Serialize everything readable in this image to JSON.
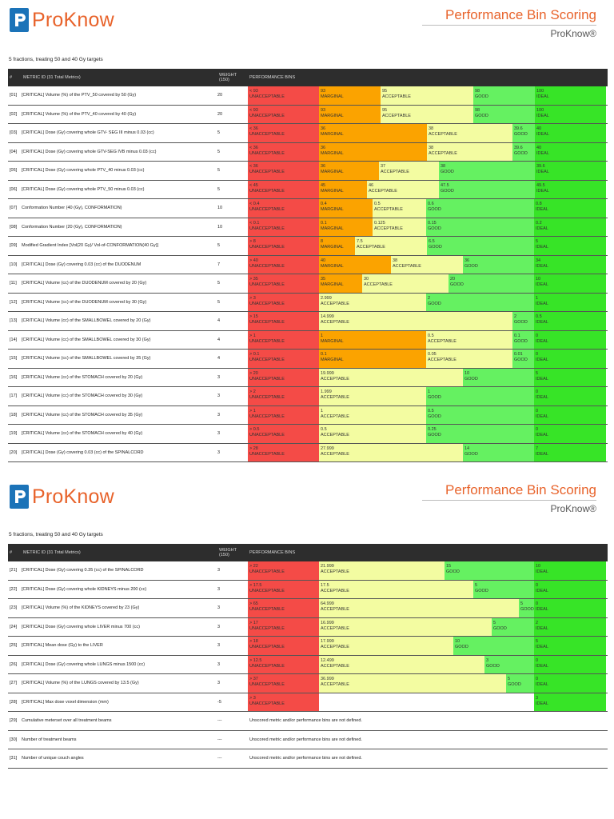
{
  "brand": {
    "name": "ProKnow"
  },
  "header": {
    "title": "Performance Bin Scoring",
    "subtitle": "ProKnow®"
  },
  "subtitle": "5 fractions, treating 50 and 40 Gy targets",
  "table_headers": {
    "num": "#",
    "metric": "METRIC ID  (31 Total Metrics)",
    "weight": "WEIGHT (150)",
    "bins": "PERFORMANCE BINS"
  },
  "colors": {
    "unacceptable": "#f44b47",
    "marginal": "#fba300",
    "acceptable": "#f3fca1",
    "good": "#65f161",
    "ideal": "#37e427",
    "logo": "#1b73b8",
    "accent": "#e8632b"
  },
  "undefined_text": "Unscored metric and/or performance bins are not defined.",
  "page1_rows": [
    {
      "num": "[01]",
      "name": "[CRITICAL] Volume (%) of the PTV_50 covered by 50 (Gy)",
      "weight": "20",
      "bins": [
        {
          "v": "< 93",
          "l": "UNACCEPTABLE",
          "c": "unacceptable",
          "w": 89
        },
        {
          "v": "93",
          "l": "MARGINAL",
          "c": "marginal",
          "w": 77
        },
        {
          "v": "95",
          "l": "ACCEPTABLE",
          "c": "acceptable",
          "w": 116
        },
        {
          "v": "98",
          "l": "GOOD",
          "c": "good",
          "w": 77
        },
        {
          "v": "100",
          "l": "IDEAL",
          "c": "ideal",
          "w": 89
        }
      ]
    },
    {
      "num": "[02]",
      "name": "[CRITICAL] Volume (%) of the PTV_40 covered by 40 (Gy)",
      "weight": "20",
      "bins": [
        {
          "v": "< 93",
          "l": "UNACCEPTABLE",
          "c": "unacceptable",
          "w": 89
        },
        {
          "v": "93",
          "l": "MARGINAL",
          "c": "marginal",
          "w": 77
        },
        {
          "v": "95",
          "l": "ACCEPTABLE",
          "c": "acceptable",
          "w": 116
        },
        {
          "v": "98",
          "l": "GOOD",
          "c": "good",
          "w": 77
        },
        {
          "v": "100",
          "l": "IDEAL",
          "c": "ideal",
          "w": 89
        }
      ]
    },
    {
      "num": "[03]",
      "name": "[CRITICAL] Dose (Gy) covering whole GTV- SEG III minus 0.03 (cc)",
      "weight": "5",
      "bins": [
        {
          "v": "< 36",
          "l": "UNACCEPTABLE",
          "c": "unacceptable",
          "w": 89
        },
        {
          "v": "36",
          "l": "MARGINAL",
          "c": "marginal",
          "w": 135
        },
        {
          "v": "38",
          "l": "ACCEPTABLE",
          "c": "acceptable",
          "w": 107
        },
        {
          "v": "39.6",
          "l": "GOOD",
          "c": "good",
          "w": 28
        },
        {
          "v": "40",
          "l": "IDEAL",
          "c": "ideal",
          "w": 89
        }
      ]
    },
    {
      "num": "[04]",
      "name": "[CRITICAL] Dose (Gy) covering whole GTV-SEG IVB minus 0.03 (cc)",
      "weight": "5",
      "bins": [
        {
          "v": "< 36",
          "l": "UNACCEPTABLE",
          "c": "unacceptable",
          "w": 89
        },
        {
          "v": "36",
          "l": "MARGINAL",
          "c": "marginal",
          "w": 135
        },
        {
          "v": "38",
          "l": "ACCEPTABLE",
          "c": "acceptable",
          "w": 107
        },
        {
          "v": "39.6",
          "l": "GOOD",
          "c": "good",
          "w": 28
        },
        {
          "v": "40",
          "l": "IDEAL",
          "c": "ideal",
          "w": 89
        }
      ]
    },
    {
      "num": "[05]",
      "name": "[CRITICAL] Dose (Gy) covering whole PTV_40 minus 0.03 (cc)",
      "weight": "5",
      "bins": [
        {
          "v": "< 36",
          "l": "UNACCEPTABLE",
          "c": "unacceptable",
          "w": 89
        },
        {
          "v": "36",
          "l": "MARGINAL",
          "c": "marginal",
          "w": 75
        },
        {
          "v": "37",
          "l": "ACCEPTABLE",
          "c": "acceptable",
          "w": 75
        },
        {
          "v": "38",
          "l": "GOOD",
          "c": "good",
          "w": 120
        },
        {
          "v": "39.6",
          "l": "IDEAL",
          "c": "ideal",
          "w": 89
        }
      ]
    },
    {
      "num": "[06]",
      "name": "[CRITICAL] Dose (Gy) covering whole PTV_50 minus 0.03 (cc)",
      "weight": "5",
      "bins": [
        {
          "v": "< 45",
          "l": "UNACCEPTABLE",
          "c": "unacceptable",
          "w": 89
        },
        {
          "v": "45",
          "l": "MARGINAL",
          "c": "marginal",
          "w": 60
        },
        {
          "v": "46",
          "l": "ACCEPTABLE",
          "c": "acceptable",
          "w": 90
        },
        {
          "v": "47.5",
          "l": "GOOD",
          "c": "good",
          "w": 120
        },
        {
          "v": "49.5",
          "l": "IDEAL",
          "c": "ideal",
          "w": 89
        }
      ]
    },
    {
      "num": "[07]",
      "name": "Conformation Number (40 (Gy), CONFORMATION)",
      "weight": "10",
      "bins": [
        {
          "v": "< 0.4",
          "l": "UNACCEPTABLE",
          "c": "unacceptable",
          "w": 89
        },
        {
          "v": "0.4",
          "l": "MARGINAL",
          "c": "marginal",
          "w": 67
        },
        {
          "v": "0.5",
          "l": "ACCEPTABLE",
          "c": "acceptable",
          "w": 67
        },
        {
          "v": "0.6",
          "l": "GOOD",
          "c": "good",
          "w": 135
        },
        {
          "v": "0.8",
          "l": "IDEAL",
          "c": "ideal",
          "w": 90
        }
      ]
    },
    {
      "num": "[08]",
      "name": "Conformation Number (20 (Gy), CONFORMATION)",
      "weight": "10",
      "bins": [
        {
          "v": "< 0.1",
          "l": "UNACCEPTABLE",
          "c": "unacceptable",
          "w": 89
        },
        {
          "v": "0.1",
          "l": "MARGINAL",
          "c": "marginal",
          "w": 67
        },
        {
          "v": "0.125",
          "l": "ACCEPTABLE",
          "c": "acceptable",
          "w": 67
        },
        {
          "v": "0.15",
          "l": "GOOD",
          "c": "good",
          "w": 135
        },
        {
          "v": "0.2",
          "l": "IDEAL",
          "c": "ideal",
          "w": 90
        }
      ]
    },
    {
      "num": "[09]",
      "name": "Modified Gradient Index [Vol(20 Gy)/ Vol-of-CONFORMATION(40 Gy)]",
      "weight": "5",
      "bins": [
        {
          "v": "> 8",
          "l": "UNACCEPTABLE",
          "c": "unacceptable",
          "w": 89
        },
        {
          "v": "8",
          "l": "MARGINAL",
          "c": "marginal",
          "w": 45
        },
        {
          "v": "7.5",
          "l": "ACCEPTABLE",
          "c": "acceptable",
          "w": 90
        },
        {
          "v": "6.5",
          "l": "GOOD",
          "c": "good",
          "w": 134
        },
        {
          "v": "5",
          "l": "IDEAL",
          "c": "ideal",
          "w": 90
        }
      ]
    },
    {
      "num": "[10]",
      "name": "[CRITICAL] Dose (Gy) covering 0.03 (cc) of the DUODENUM",
      "weight": "7",
      "bins": [
        {
          "v": "> 40",
          "l": "UNACCEPTABLE",
          "c": "unacceptable",
          "w": 89
        },
        {
          "v": "40",
          "l": "MARGINAL",
          "c": "marginal",
          "w": 90
        },
        {
          "v": "38",
          "l": "ACCEPTABLE",
          "c": "acceptable",
          "w": 90
        },
        {
          "v": "36",
          "l": "GOOD",
          "c": "good",
          "w": 89
        },
        {
          "v": "34",
          "l": "IDEAL",
          "c": "ideal",
          "w": 90
        }
      ]
    },
    {
      "num": "[11]",
      "name": "[CRITICAL] Volume (cc) of the DUODENUM covered by 20 (Gy)",
      "weight": "5",
      "bins": [
        {
          "v": "> 35",
          "l": "UNACCEPTABLE",
          "c": "unacceptable",
          "w": 89
        },
        {
          "v": "35",
          "l": "MARGINAL",
          "c": "marginal",
          "w": 54
        },
        {
          "v": "30",
          "l": "ACCEPTABLE",
          "c": "acceptable",
          "w": 108
        },
        {
          "v": "20",
          "l": "GOOD",
          "c": "good",
          "w": 107
        },
        {
          "v": "10",
          "l": "IDEAL",
          "c": "ideal",
          "w": 90
        }
      ]
    },
    {
      "num": "[12]",
      "name": "[CRITICAL] Volume (cc) of the DUODENUM covered by 30 (Gy)",
      "weight": "5",
      "bins": [
        {
          "v": "> 3",
          "l": "UNACCEPTABLE",
          "c": "unacceptable",
          "w": 89
        },
        {
          "v": "2.999",
          "l": "ACCEPTABLE",
          "c": "acceptable",
          "w": 134
        },
        {
          "v": "2",
          "l": "GOOD",
          "c": "good",
          "w": 135
        },
        {
          "v": "1",
          "l": "IDEAL",
          "c": "ideal",
          "w": 90
        }
      ]
    },
    {
      "num": "[13]",
      "name": "[CRITICAL] Volume (cc) of the SMALLBOWEL covered by 20 (Gy)",
      "weight": "4",
      "bins": [
        {
          "v": "> 15",
          "l": "UNACCEPTABLE",
          "c": "unacceptable",
          "w": 89
        },
        {
          "v": "14.999",
          "l": "ACCEPTABLE",
          "c": "acceptable",
          "w": 242
        },
        {
          "v": "2",
          "l": "GOOD",
          "c": "good",
          "w": 27
        },
        {
          "v": "0.5",
          "l": "IDEAL",
          "c": "ideal",
          "w": 90
        }
      ]
    },
    {
      "num": "[14]",
      "name": "[CRITICAL] Volume (cc) of the SMALLBOWEL covered by 30 (Gy)",
      "weight": "4",
      "bins": [
        {
          "v": "> 1",
          "l": "UNACCEPTABLE",
          "c": "unacceptable",
          "w": 89
        },
        {
          "v": "1",
          "l": "MARGINAL",
          "c": "marginal",
          "w": 134
        },
        {
          "v": "0.5",
          "l": "ACCEPTABLE",
          "c": "acceptable",
          "w": 108
        },
        {
          "v": "0.1",
          "l": "GOOD",
          "c": "good",
          "w": 27
        },
        {
          "v": "0",
          "l": "IDEAL",
          "c": "ideal",
          "w": 90
        }
      ]
    },
    {
      "num": "[15]",
      "name": "[CRITICAL] Volume (cc) of the SMALLBOWEL covered by 35 (Gy)",
      "weight": "4",
      "bins": [
        {
          "v": "> 0.1",
          "l": "UNACCEPTABLE",
          "c": "unacceptable",
          "w": 89
        },
        {
          "v": "0.1",
          "l": "MARGINAL",
          "c": "marginal",
          "w": 134
        },
        {
          "v": "0.05",
          "l": "ACCEPTABLE",
          "c": "acceptable",
          "w": 108
        },
        {
          "v": "0.01",
          "l": "GOOD",
          "c": "good",
          "w": 27
        },
        {
          "v": "0",
          "l": "IDEAL",
          "c": "ideal",
          "w": 90
        }
      ]
    },
    {
      "num": "[16]",
      "name": "[CRITICAL] Volume (cc) of the STOMACH covered by 20 (Gy)",
      "weight": "3",
      "bins": [
        {
          "v": "> 20",
          "l": "UNACCEPTABLE",
          "c": "unacceptable",
          "w": 89
        },
        {
          "v": "19.999",
          "l": "ACCEPTABLE",
          "c": "acceptable",
          "w": 180
        },
        {
          "v": "10",
          "l": "GOOD",
          "c": "good",
          "w": 89
        },
        {
          "v": "5",
          "l": "IDEAL",
          "c": "ideal",
          "w": 90
        }
      ]
    },
    {
      "num": "[17]",
      "name": "[CRITICAL] Volume (cc) of the STOMACH covered by 30 (Gy)",
      "weight": "3",
      "bins": [
        {
          "v": "> 2",
          "l": "UNACCEPTABLE",
          "c": "unacceptable",
          "w": 89
        },
        {
          "v": "1.999",
          "l": "ACCEPTABLE",
          "c": "acceptable",
          "w": 134
        },
        {
          "v": "1",
          "l": "GOOD",
          "c": "good",
          "w": 135
        },
        {
          "v": "0",
          "l": "IDEAL",
          "c": "ideal",
          "w": 90
        }
      ]
    },
    {
      "num": "[18]",
      "name": "[CRITICAL] Volume (cc) of the STOMACH covered by 35 (Gy)",
      "weight": "3",
      "bins": [
        {
          "v": "> 1",
          "l": "UNACCEPTABLE",
          "c": "unacceptable",
          "w": 89
        },
        {
          "v": "1",
          "l": "ACCEPTABLE",
          "c": "acceptable",
          "w": 134
        },
        {
          "v": "0.5",
          "l": "GOOD",
          "c": "good",
          "w": 135
        },
        {
          "v": "0",
          "l": "IDEAL",
          "c": "ideal",
          "w": 90
        }
      ]
    },
    {
      "num": "[19]",
      "name": "[CRITICAL] Volume (cc) of the STOMACH covered by 40 (Gy)",
      "weight": "3",
      "bins": [
        {
          "v": "> 0.5",
          "l": "UNACCEPTABLE",
          "c": "unacceptable",
          "w": 89
        },
        {
          "v": "0.5",
          "l": "ACCEPTABLE",
          "c": "acceptable",
          "w": 134
        },
        {
          "v": "0.25",
          "l": "GOOD",
          "c": "good",
          "w": 135
        },
        {
          "v": "0",
          "l": "IDEAL",
          "c": "ideal",
          "w": 90
        }
      ]
    },
    {
      "num": "[20]",
      "name": "[CRITICAL] Dose (Gy) covering 0.03 (cc) of the SPINALCORD",
      "weight": "3",
      "bins": [
        {
          "v": "> 28",
          "l": "UNACCEPTABLE",
          "c": "unacceptable",
          "w": 89
        },
        {
          "v": "27.999",
          "l": "ACCEPTABLE",
          "c": "acceptable",
          "w": 180
        },
        {
          "v": "14",
          "l": "GOOD",
          "c": "good",
          "w": 89
        },
        {
          "v": "7",
          "l": "IDEAL",
          "c": "ideal",
          "w": 90
        }
      ]
    }
  ],
  "page2_rows": [
    {
      "num": "[21]",
      "name": "[CRITICAL] Dose (Gy) covering 0.35 (cc) of the SPINALCORD",
      "weight": "3",
      "bins": [
        {
          "v": "> 22",
          "l": "UNACCEPTABLE",
          "c": "unacceptable",
          "w": 89
        },
        {
          "v": "21.999",
          "l": "ACCEPTABLE",
          "c": "acceptable",
          "w": 157
        },
        {
          "v": "15",
          "l": "GOOD",
          "c": "good",
          "w": 112
        },
        {
          "v": "10",
          "l": "IDEAL",
          "c": "ideal",
          "w": 90
        }
      ]
    },
    {
      "num": "[22]",
      "name": "[CRITICAL] Dose (Gy) covering whole KIDNEYS minus 200 (cc)",
      "weight": "3",
      "bins": [
        {
          "v": "> 17.5",
          "l": "UNACCEPTABLE",
          "c": "unacceptable",
          "w": 89
        },
        {
          "v": "17.5",
          "l": "ACCEPTABLE",
          "c": "acceptable",
          "w": 193
        },
        {
          "v": "5",
          "l": "GOOD",
          "c": "good",
          "w": 76
        },
        {
          "v": "0",
          "l": "IDEAL",
          "c": "ideal",
          "w": 90
        }
      ]
    },
    {
      "num": "[23]",
      "name": "[CRITICAL] Volume (%) of the KIDNEYS covered by 23 (Gy)",
      "weight": "3",
      "bins": [
        {
          "v": "> 65",
          "l": "UNACCEPTABLE",
          "c": "unacceptable",
          "w": 89
        },
        {
          "v": "64.999",
          "l": "ACCEPTABLE",
          "c": "acceptable",
          "w": 250
        },
        {
          "v": "5",
          "l": "GOOD",
          "c": "good",
          "w": 19
        },
        {
          "v": "0",
          "l": "IDEAL",
          "c": "ideal",
          "w": 90
        }
      ]
    },
    {
      "num": "[24]",
      "name": "[CRITICAL] Dose (Gy) covering whole LIVER minus 700 (cc)",
      "weight": "3",
      "bins": [
        {
          "v": "> 17",
          "l": "UNACCEPTABLE",
          "c": "unacceptable",
          "w": 89
        },
        {
          "v": "16.999",
          "l": "ACCEPTABLE",
          "c": "acceptable",
          "w": 216
        },
        {
          "v": "5",
          "l": "GOOD",
          "c": "good",
          "w": 53
        },
        {
          "v": "2",
          "l": "IDEAL",
          "c": "ideal",
          "w": 90
        }
      ]
    },
    {
      "num": "[25]",
      "name": "[CRITICAL] Mean dose (Gy) to the LIVER",
      "weight": "3",
      "bins": [
        {
          "v": "> 18",
          "l": "UNACCEPTABLE",
          "c": "unacceptable",
          "w": 89
        },
        {
          "v": "17.999",
          "l": "ACCEPTABLE",
          "c": "acceptable",
          "w": 168
        },
        {
          "v": "10",
          "l": "GOOD",
          "c": "good",
          "w": 101
        },
        {
          "v": "5",
          "l": "IDEAL",
          "c": "ideal",
          "w": 90
        }
      ]
    },
    {
      "num": "[26]",
      "name": "[CRITICAL] Dose (Gy) covering whole LUNGS minus 1500 (cc)",
      "weight": "3",
      "bins": [
        {
          "v": "> 12.5",
          "l": "UNACCEPTABLE",
          "c": "unacceptable",
          "w": 89
        },
        {
          "v": "12.499",
          "l": "ACCEPTABLE",
          "c": "acceptable",
          "w": 207
        },
        {
          "v": "3",
          "l": "GOOD",
          "c": "good",
          "w": 62
        },
        {
          "v": "0",
          "l": "IDEAL",
          "c": "ideal",
          "w": 90
        }
      ]
    },
    {
      "num": "[27]",
      "name": "[CRITICAL] Volume (%) of the LUNGS covered by 13.5 (Gy)",
      "weight": "3",
      "bins": [
        {
          "v": "> 37",
          "l": "UNACCEPTABLE",
          "c": "unacceptable",
          "w": 89
        },
        {
          "v": "36.999",
          "l": "ACCEPTABLE",
          "c": "acceptable",
          "w": 234
        },
        {
          "v": "5",
          "l": "GOOD",
          "c": "good",
          "w": 35
        },
        {
          "v": "0",
          "l": "IDEAL",
          "c": "ideal",
          "w": 90
        }
      ]
    },
    {
      "num": "[28]",
      "name": "[CRITICAL] Max dose voxel dimension (mm)",
      "weight": "-5",
      "bins": [
        {
          "v": "> 3",
          "l": "UNACCEPTABLE",
          "c": "unacceptable",
          "w": 89
        },
        {
          "v": "",
          "l": "",
          "c": "blank",
          "w": 269
        },
        {
          "v": "3",
          "l": "IDEAL",
          "c": "ideal",
          "w": 90
        }
      ]
    },
    {
      "num": "[29]",
      "name": "Cumulative meterset over all treatment beams",
      "weight": "---",
      "bins": []
    },
    {
      "num": "[30]",
      "name": "Number of treatment beams",
      "weight": "---",
      "bins": []
    },
    {
      "num": "[31]",
      "name": "Number of unique couch angles",
      "weight": "---",
      "bins": []
    }
  ]
}
